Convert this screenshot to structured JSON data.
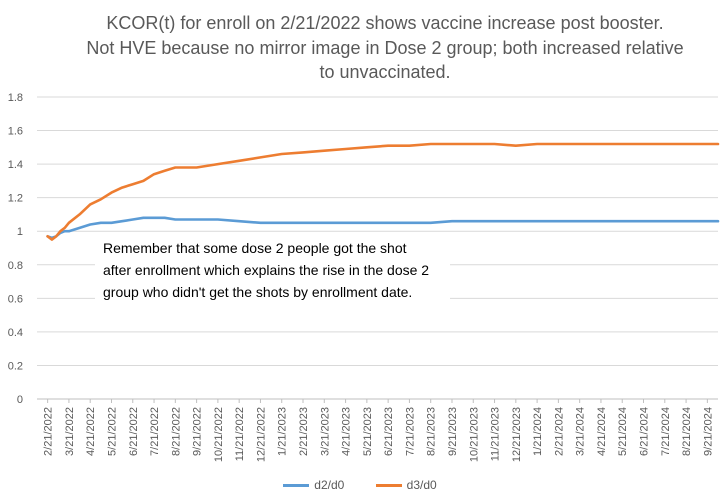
{
  "chart_data": {
    "type": "line",
    "title_lines": [
      "KCOR(t) for enroll on 2/21/2022 shows vaccine increase post booster.",
      "Not HVE because no mirror image in Dose 2 group; both increased relative",
      "to unvaccinated."
    ],
    "annotation_lines": [
      "Remember that some dose 2 people got the shot",
      "after enrollment which explains the rise in the dose 2",
      "group who didn't get the shots by enrollment date."
    ],
    "ylim": [
      0,
      1.8
    ],
    "yticks": [
      0,
      0.2,
      0.4,
      0.6,
      0.8,
      1,
      1.2,
      1.4,
      1.6,
      1.8
    ],
    "ytick_labels": [
      "0",
      "0.2",
      "0.4",
      "0.6",
      "0.8",
      "1",
      "1.2",
      "1.4",
      "1.6",
      "1.8"
    ],
    "grid": true,
    "legend_position": "bottom",
    "xtick_labels": [
      "2/21/2022",
      "3/21/2022",
      "4/21/2022",
      "5/21/2022",
      "6/21/2022",
      "7/21/2022",
      "8/21/2022",
      "9/21/2022",
      "10/21/2022",
      "11/21/2022",
      "12/21/2022",
      "1/21/2023",
      "2/21/2023",
      "3/21/2023",
      "4/21/2023",
      "5/21/2023",
      "6/21/2023",
      "7/21/2023",
      "8/21/2023",
      "9/21/2023",
      "10/21/2023",
      "11/21/2023",
      "12/21/2023",
      "1/21/2024",
      "2/21/2024",
      "3/21/2024",
      "4/21/2024",
      "5/21/2024",
      "6/21/2024",
      "7/21/2024",
      "8/21/2024",
      "9/21/2024"
    ],
    "x_months": [
      0,
      0.2,
      0.4,
      0.6,
      0.8,
      1,
      1.5,
      2,
      2.5,
      3,
      3.5,
      4,
      4.5,
      5,
      5.5,
      6,
      7,
      8,
      9,
      10,
      11,
      12,
      13,
      14,
      15,
      16,
      17,
      18,
      19,
      20,
      21,
      22,
      23,
      24,
      25,
      26,
      27,
      28,
      29,
      30,
      31,
      31.5
    ],
    "series": [
      {
        "name": "d2/d0",
        "color": "#5B9BD5",
        "values": [
          0.97,
          0.96,
          0.97,
          0.99,
          1.0,
          1.0,
          1.02,
          1.04,
          1.05,
          1.05,
          1.06,
          1.07,
          1.08,
          1.08,
          1.08,
          1.07,
          1.07,
          1.07,
          1.06,
          1.05,
          1.05,
          1.05,
          1.05,
          1.05,
          1.05,
          1.05,
          1.05,
          1.05,
          1.06,
          1.06,
          1.06,
          1.06,
          1.06,
          1.06,
          1.06,
          1.06,
          1.06,
          1.06,
          1.06,
          1.06,
          1.06,
          1.06
        ]
      },
      {
        "name": "d3/d0",
        "color": "#ED7D31",
        "values": [
          0.97,
          0.95,
          0.97,
          1.0,
          1.02,
          1.05,
          1.1,
          1.16,
          1.19,
          1.23,
          1.26,
          1.28,
          1.3,
          1.34,
          1.36,
          1.38,
          1.38,
          1.4,
          1.42,
          1.44,
          1.46,
          1.47,
          1.48,
          1.49,
          1.5,
          1.51,
          1.51,
          1.52,
          1.52,
          1.52,
          1.52,
          1.51,
          1.52,
          1.52,
          1.52,
          1.52,
          1.52,
          1.52,
          1.52,
          1.52,
          1.52,
          1.52
        ]
      }
    ]
  }
}
